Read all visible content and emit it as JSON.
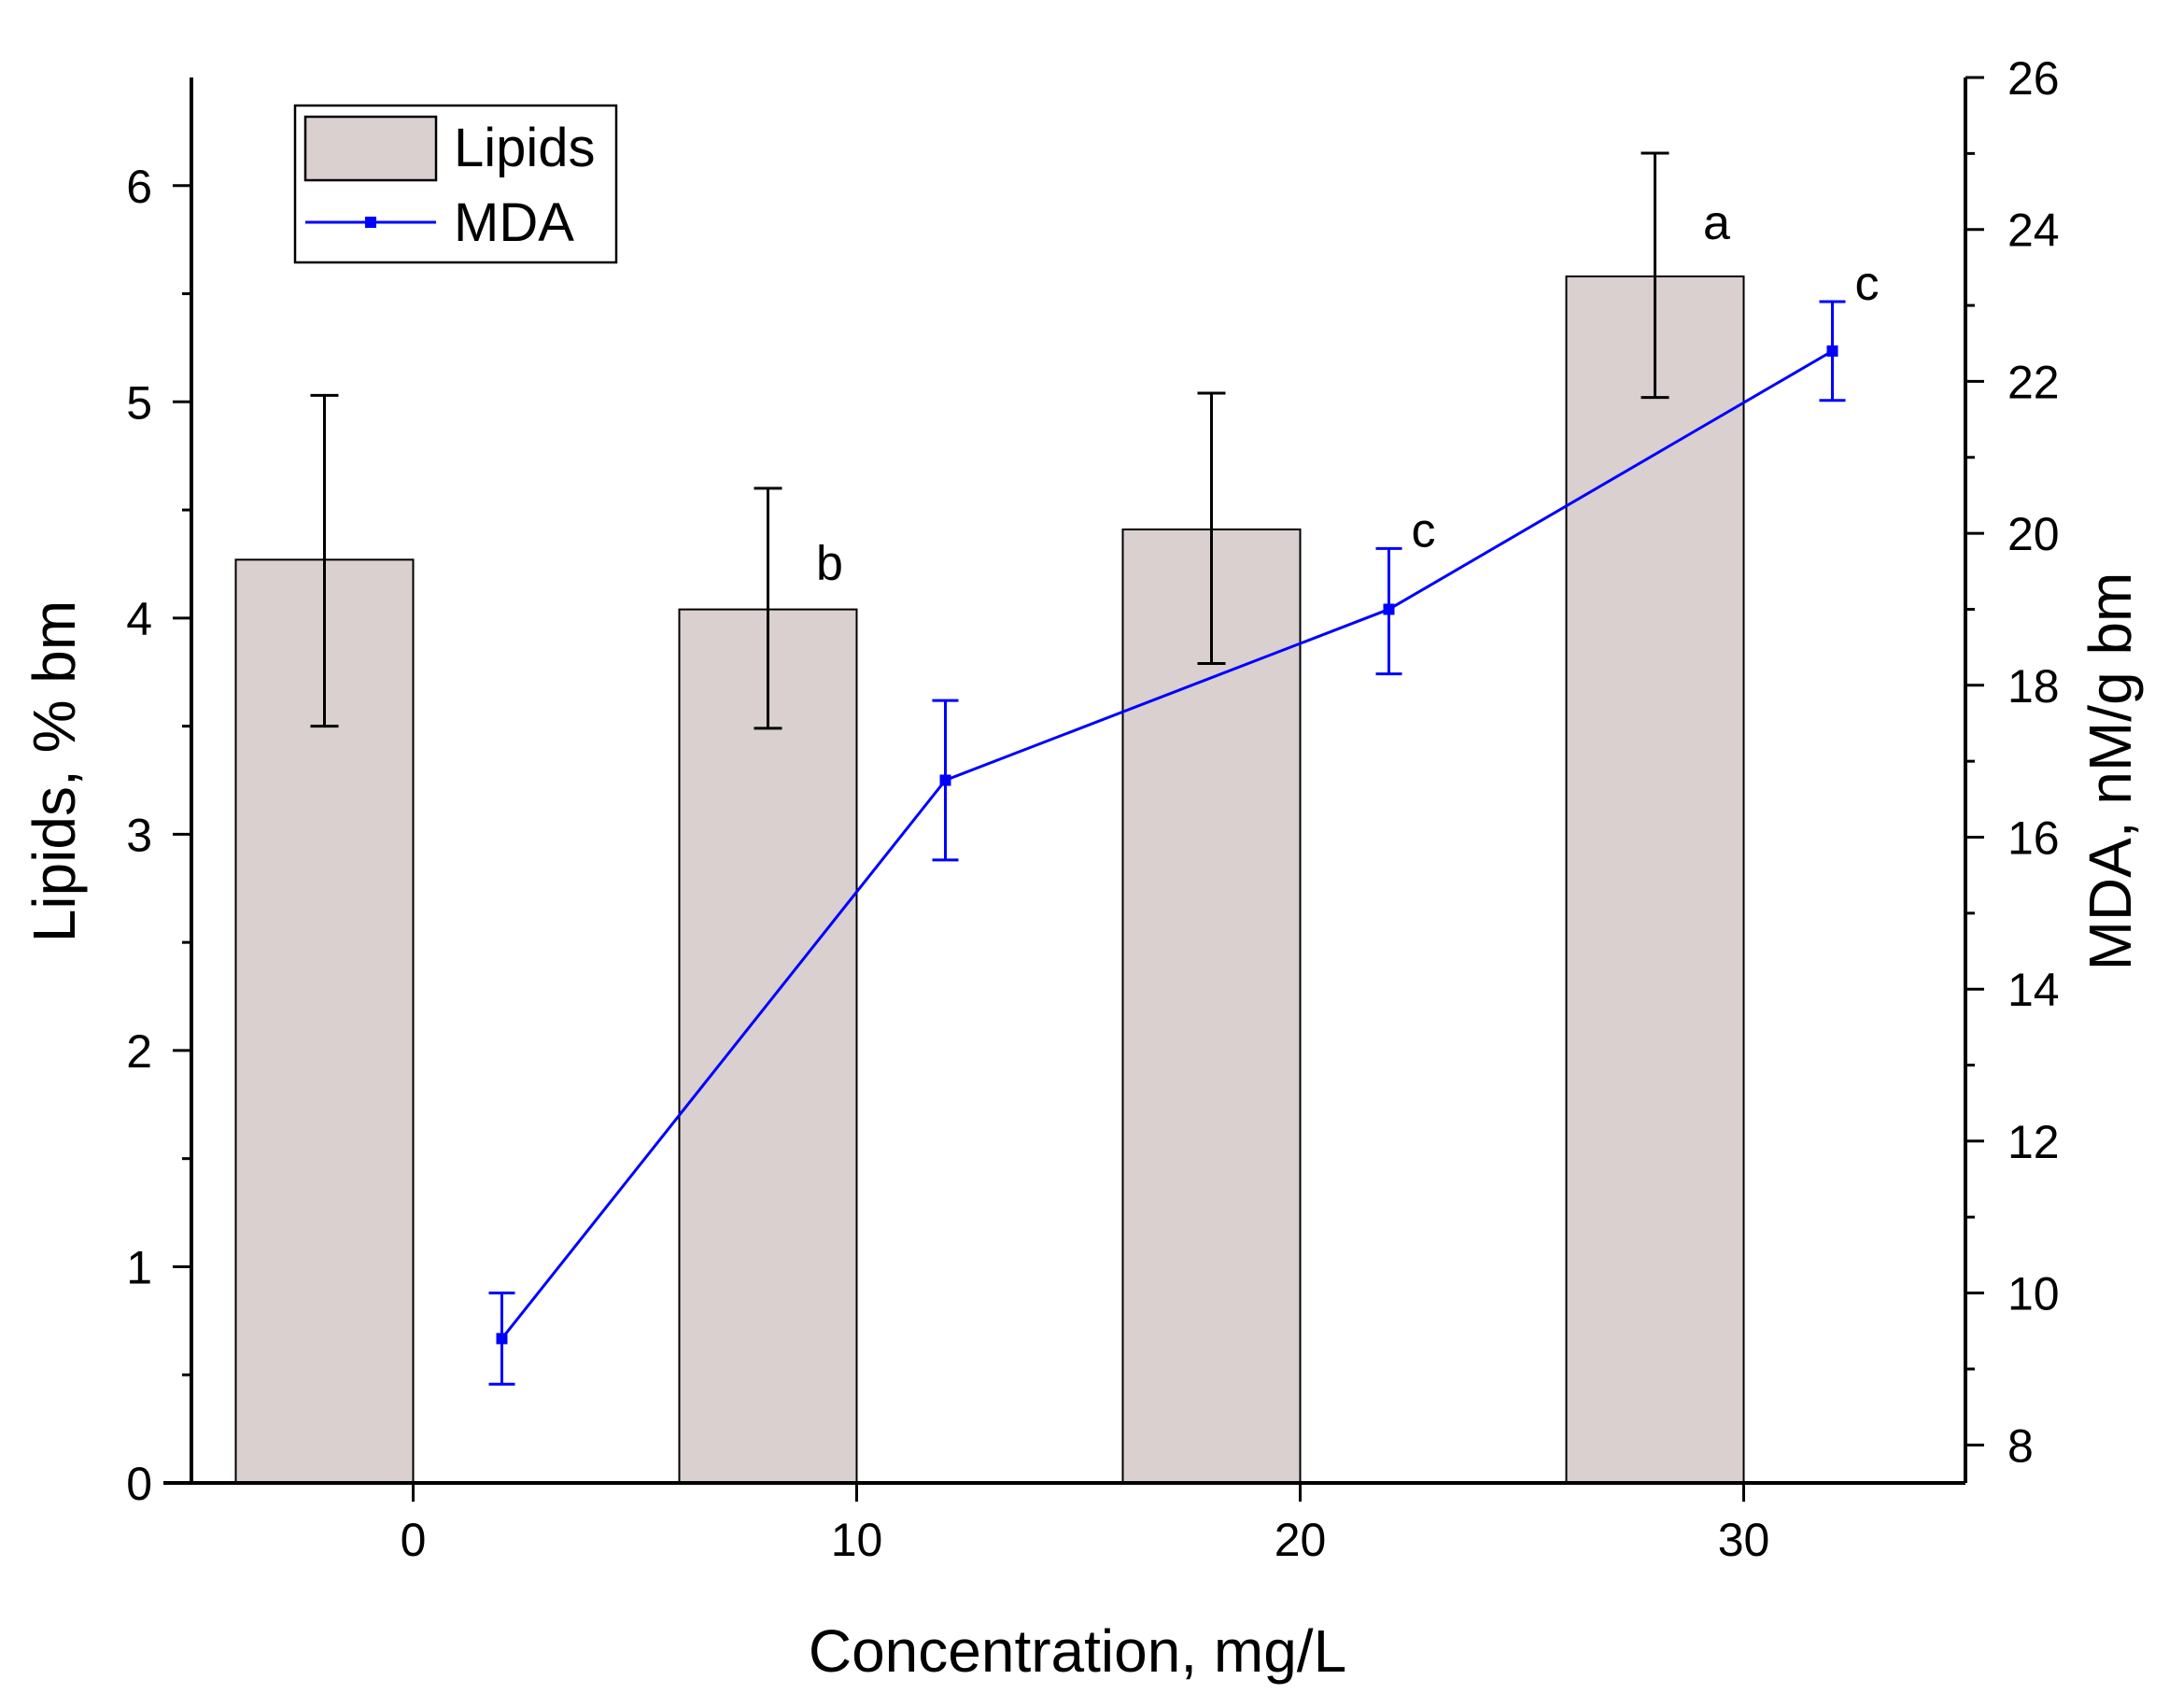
{
  "chart_data": {
    "type": "bar",
    "title": "",
    "xlabel": "Concentration, mg/L",
    "ylabel": "Lipids, % bm",
    "y2label": "MDA, nM/g bm",
    "xlim": [
      -5,
      35
    ],
    "ylim": [
      0,
      6.5
    ],
    "y2lim": [
      7.5,
      26
    ],
    "grid": false,
    "legend_position": "top-left",
    "x_ticks": [
      0,
      10,
      20,
      30
    ],
    "y_ticks": [
      0,
      1,
      2,
      3,
      4,
      5,
      6
    ],
    "y2_ticks": [
      8,
      10,
      12,
      14,
      16,
      18,
      20,
      22,
      24,
      26
    ],
    "x_tick_labels": [
      "0",
      "10",
      "20",
      "30"
    ],
    "y_tick_labels": [
      "0",
      "1",
      "2",
      "3",
      "4",
      "5",
      "6"
    ],
    "y2_tick_labels": [
      "8",
      "10",
      "12",
      "14",
      "16",
      "18",
      "20",
      "22",
      "24",
      "26"
    ],
    "series": [
      {
        "name": "Lipids",
        "type": "bar",
        "axis": "left",
        "color": "#d9d0cf",
        "x": [
          -2,
          8,
          18,
          28
        ],
        "values": [
          4.27,
          4.04,
          4.41,
          5.58
        ],
        "err_low": [
          3.5,
          3.49,
          3.79,
          5.02
        ],
        "err_high": [
          5.03,
          4.6,
          5.04,
          6.15
        ],
        "labels": [
          "",
          "b",
          "",
          "a"
        ]
      },
      {
        "name": "MDA",
        "type": "line",
        "axis": "right",
        "color": "#0000ff",
        "x": [
          2,
          12,
          22,
          32
        ],
        "values": [
          9.4,
          16.75,
          19.0,
          22.4
        ],
        "err_low": [
          8.8,
          15.7,
          18.15,
          21.75
        ],
        "err_high": [
          10.0,
          17.8,
          19.8,
          23.05
        ],
        "labels": [
          "",
          "",
          "c",
          "c"
        ]
      }
    ]
  }
}
